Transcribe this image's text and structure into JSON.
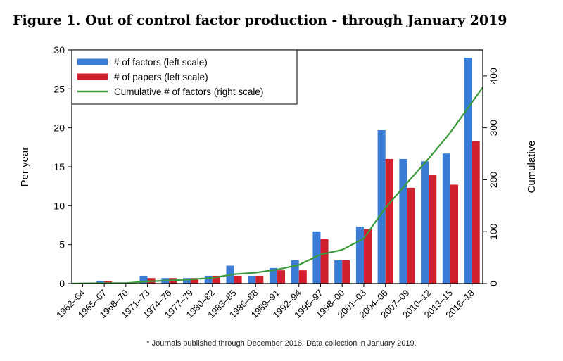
{
  "title": "Figure 1. Out of control factor production - through January 2019",
  "footnote": "* Journals published through December 2018. Data collection in January 2019.",
  "colors": {
    "factors": "#3a7bd5",
    "papers": "#d0202e",
    "cumulative": "#3b9a3b"
  },
  "chart_data": {
    "type": "bar",
    "ylabel": "Per year",
    "y2label": "Cumulative",
    "ylim": [
      0,
      30
    ],
    "y2lim": [
      0,
      450
    ],
    "yticks": [
      0,
      5,
      10,
      15,
      20,
      25,
      30
    ],
    "y2ticks": [
      0,
      100,
      200,
      300,
      400
    ],
    "legend_position": "top-left",
    "categories": [
      "1962–64",
      "1965–67",
      "1968–70",
      "1971–73",
      "1974–76",
      "1977–79",
      "1980–82",
      "1983–85",
      "1986–88",
      "1989–91",
      "1992–94",
      "1995–97",
      "1998–00",
      "2001–03",
      "2004–06",
      "2007–09",
      "2010–12",
      "2013–15",
      "2016–18"
    ],
    "series": [
      {
        "name": "# of factors (left scale)",
        "type": "bar",
        "axis": "left",
        "values": [
          0,
          0.3,
          0,
          1.0,
          0.7,
          0.7,
          1.0,
          2.3,
          1.0,
          2.0,
          3.0,
          6.7,
          3.0,
          7.3,
          19.7,
          16.0,
          15.7,
          16.7,
          29.0
        ]
      },
      {
        "name": "# of papers (left scale)",
        "type": "bar",
        "axis": "left",
        "values": [
          0,
          0.3,
          0,
          0.7,
          0.7,
          0.7,
          1.0,
          1.0,
          1.0,
          1.7,
          1.7,
          5.7,
          3.0,
          7.0,
          16.0,
          12.3,
          14.0,
          12.7,
          18.3
        ]
      },
      {
        "name": "Cumulative # of factors (right scale)",
        "type": "line",
        "axis": "right",
        "values": [
          0,
          1,
          1,
          4,
          6,
          8,
          11,
          18,
          21,
          27,
          36,
          56,
          65,
          87,
          146,
          194,
          241,
          291,
          378
        ]
      }
    ]
  }
}
